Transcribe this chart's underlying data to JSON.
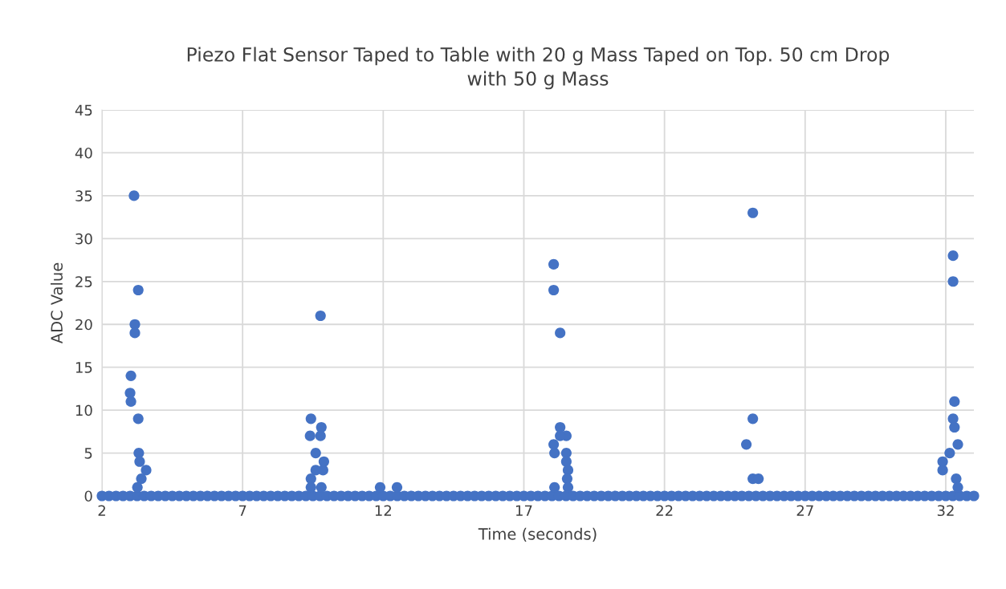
{
  "chart_data": {
    "type": "scatter",
    "title": "Piezo Flat Sensor Taped to Table with 20 g Mass Taped on Top. 50 cm Drop\nwith 50 g Mass",
    "xlabel": "Time (seconds)",
    "ylabel": "ADC Value",
    "xlim": [
      2,
      33
    ],
    "xticks": [
      2,
      7,
      12,
      17,
      22,
      27,
      32
    ],
    "ylim": [
      0,
      45
    ],
    "yticks": [
      0,
      5,
      10,
      15,
      20,
      25,
      30,
      35,
      40,
      45
    ],
    "grid": true,
    "marker": "circle",
    "series": [
      {
        "color": "#4472c4",
        "x": [
          2,
          2.25,
          2.5,
          2.75,
          3,
          3.25,
          3.5,
          3.75,
          4,
          4.25,
          4.5,
          4.75,
          5,
          5.25,
          5.5,
          5.75,
          6,
          6.25,
          6.5,
          6.75,
          7,
          7.25,
          7.5,
          7.75,
          8,
          8.25,
          8.5,
          8.75,
          9,
          9.25,
          9.5,
          9.75,
          10,
          10.25,
          10.5,
          10.75,
          11,
          11.25,
          11.5,
          11.75,
          12,
          12.25,
          12.5,
          12.75,
          13,
          13.25,
          13.5,
          13.75,
          14,
          14.25,
          14.5,
          14.75,
          15,
          15.25,
          15.5,
          15.75,
          16,
          16.25,
          16.5,
          16.75,
          17,
          17.25,
          17.5,
          17.75,
          18,
          18.25,
          18.5,
          18.75,
          19,
          19.25,
          19.5,
          19.75,
          20,
          20.25,
          20.5,
          20.75,
          21,
          21.25,
          21.5,
          21.75,
          22,
          22.25,
          22.5,
          22.75,
          23,
          23.25,
          23.5,
          23.75,
          24,
          24.25,
          24.5,
          24.75,
          25,
          25.25,
          25.5,
          25.75,
          26,
          26.25,
          26.5,
          26.75,
          27,
          27.25,
          27.5,
          27.75,
          28,
          28.25,
          28.5,
          28.75,
          29,
          29.25,
          29.5,
          29.75,
          30,
          30.25,
          30.5,
          30.75,
          31,
          31.25,
          31.5,
          31.75,
          32,
          32.25,
          32.5,
          32.75,
          33,
          3.14,
          3.29,
          3.17,
          3.17,
          3.03,
          3,
          3.03,
          3.29,
          3.31,
          3.34,
          3.57,
          3.4,
          3.26,
          9.77,
          9.43,
          9.8,
          9.4,
          9.77,
          9.6,
          9.89,
          9.6,
          9.86,
          9.43,
          9.43,
          9.8,
          11.89,
          12.49,
          18.06,
          18.06,
          18.29,
          18.29,
          18.51,
          18.29,
          18.06,
          18.09,
          18.51,
          18.51,
          18.57,
          18.54,
          18.09,
          18.57,
          25.14,
          25.14,
          24.91,
          25.14,
          25.34,
          32.26,
          32.26,
          32.31,
          32.26,
          32.31,
          32.43,
          32.14,
          31.89,
          31.89,
          32.37,
          32.43
        ],
        "values": [
          0,
          0,
          0,
          0,
          0,
          0,
          0,
          0,
          0,
          0,
          0,
          0,
          0,
          0,
          0,
          0,
          0,
          0,
          0,
          0,
          0,
          0,
          0,
          0,
          0,
          0,
          0,
          0,
          0,
          0,
          0,
          0,
          0,
          0,
          0,
          0,
          0,
          0,
          0,
          0,
          0,
          0,
          0,
          0,
          0,
          0,
          0,
          0,
          0,
          0,
          0,
          0,
          0,
          0,
          0,
          0,
          0,
          0,
          0,
          0,
          0,
          0,
          0,
          0,
          0,
          0,
          0,
          0,
          0,
          0,
          0,
          0,
          0,
          0,
          0,
          0,
          0,
          0,
          0,
          0,
          0,
          0,
          0,
          0,
          0,
          0,
          0,
          0,
          0,
          0,
          0,
          0,
          0,
          0,
          0,
          0,
          0,
          0,
          0,
          0,
          0,
          0,
          0,
          0,
          0,
          0,
          0,
          0,
          0,
          0,
          0,
          0,
          0,
          0,
          0,
          0,
          0,
          0,
          0,
          0,
          0,
          0,
          0,
          0,
          0,
          35,
          24,
          20,
          19,
          14,
          12,
          11,
          9,
          5,
          4,
          3,
          2,
          1,
          21,
          9,
          8,
          7,
          7,
          5,
          4,
          3,
          3,
          2,
          1,
          1,
          1,
          1,
          27,
          24,
          19,
          8,
          7,
          7,
          6,
          5,
          5,
          4,
          3,
          2,
          1,
          1,
          33,
          9,
          6,
          2,
          2,
          28,
          25,
          11,
          9,
          8,
          6,
          5,
          4,
          3,
          2,
          1
        ]
      }
    ]
  }
}
